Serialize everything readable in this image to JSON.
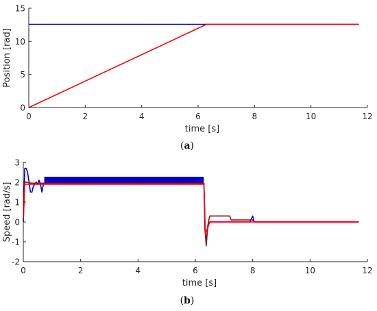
{
  "chart_data": [
    {
      "type": "line",
      "sublabel_prefix": "(",
      "sublabel_letter": "a",
      "sublabel_suffix": ")",
      "xlabel": "time [s]",
      "ylabel": "Position [rad]",
      "xlim": [
        0,
        12
      ],
      "ylim": [
        0,
        15
      ],
      "xticks": [
        0,
        2,
        4,
        6,
        8,
        10,
        12
      ],
      "yticks": [
        0,
        5,
        10,
        15
      ],
      "grid": false,
      "series": [
        {
          "color": "#0000cc",
          "x": [
            0,
            6.3,
            11.7
          ],
          "y": [
            12.57,
            12.57,
            12.57
          ]
        },
        {
          "color": "#ff0000",
          "x": [
            0,
            6.3,
            11.7
          ],
          "y": [
            0,
            12.57,
            12.57
          ]
        }
      ]
    },
    {
      "type": "line",
      "sublabel_prefix": "(",
      "sublabel_letter": "b",
      "sublabel_suffix": ")",
      "xlabel": "time [s]",
      "ylabel": "Speed [rad/s]",
      "xlim": [
        0,
        12
      ],
      "ylim": [
        -2,
        3
      ],
      "xticks": [
        0,
        2,
        4,
        6,
        8,
        10,
        12
      ],
      "yticks": [
        -2,
        -1,
        0,
        1,
        2,
        3
      ],
      "grid": false,
      "band": {
        "color": "#ff88dd",
        "opacity": 0.22,
        "x": [
          0,
          6.3,
          6.32,
          6.4,
          6.5,
          11.7
        ],
        "upper": [
          2.1,
          2.1,
          0.3,
          -0.8,
          0.1,
          0.1
        ],
        "lower": [
          1.8,
          1.8,
          -0.3,
          -1.2,
          -0.1,
          -0.1
        ]
      },
      "series": [
        {
          "color": "#0000cc",
          "x": [
            0,
            0.05,
            0.1,
            0.15,
            0.2,
            0.25,
            0.3,
            0.35,
            0.4,
            0.45,
            0.5,
            0.55,
            0.6,
            0.65,
            0.7,
            0.8,
            6.2,
            6.3,
            6.33,
            6.38,
            6.43,
            6.5,
            6.8,
            7.2,
            7.25,
            7.9,
            8.0,
            8.05,
            11.7
          ],
          "y": [
            0,
            2.7,
            2.7,
            2.5,
            2.0,
            1.5,
            1.5,
            1.8,
            1.9,
            2.0,
            1.9,
            2.1,
            1.9,
            1.5,
            1.9,
            2.0,
            2.0,
            1.9,
            -0.3,
            -1.0,
            -0.3,
            0.0,
            0.0,
            0.0,
            0.0,
            0.0,
            0.3,
            0.0,
            0.0
          ],
          "spikes": {
            "from": 0.75,
            "to": 6.25,
            "step": 0.05,
            "low": 1.95,
            "high": 2.25
          }
        },
        {
          "color": "#8b1a1a",
          "x": [
            0,
            0.05,
            0.1,
            0.3,
            6.3,
            6.34,
            6.38,
            6.43,
            6.5,
            7.2,
            7.25,
            8.0,
            8.05,
            11.7
          ],
          "y": [
            0,
            2.0,
            2.0,
            1.95,
            1.95,
            -0.5,
            -1.2,
            -0.2,
            0.3,
            0.3,
            0.1,
            0.1,
            0.0,
            0.0
          ]
        },
        {
          "color": "#ff0000",
          "x": [
            0,
            0.05,
            6.3,
            6.35,
            6.5,
            11.7
          ],
          "y": [
            0,
            1.9,
            1.9,
            -0.6,
            0.0,
            0.0
          ]
        }
      ]
    }
  ]
}
